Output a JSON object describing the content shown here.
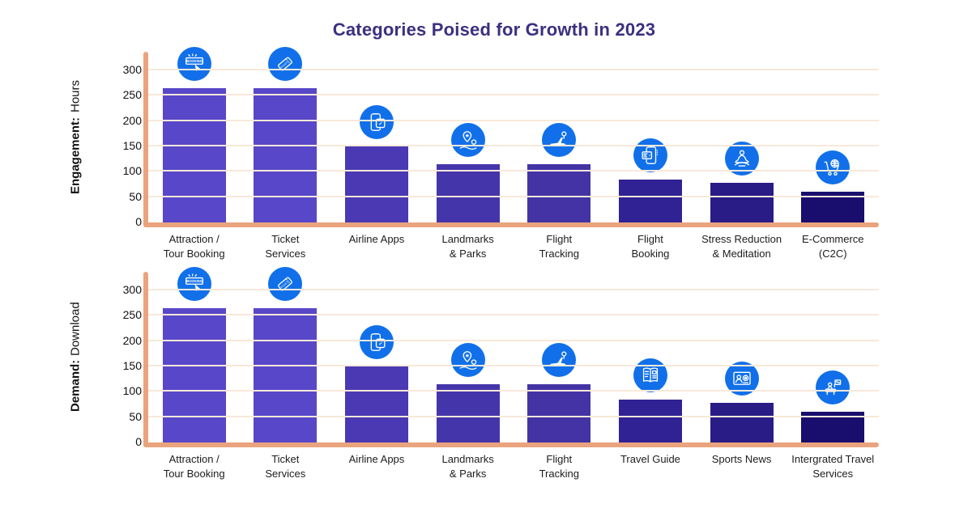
{
  "title": "Categories Poised for Growth in 2023",
  "colors": {
    "title": "#3a3180",
    "axis": "#e9a47e",
    "gridline": "#f8e8da",
    "icon_circle": "#1170e9",
    "bar_palette": [
      "#5847c8",
      "#5847c8",
      "#4a39b2",
      "#4535aa",
      "#4333a5",
      "#302295",
      "#291c87",
      "#190e6e"
    ]
  },
  "icon_texts": {
    "booking": "BOOKING",
    "ticket": "TICKET"
  },
  "chart_data": [
    {
      "type": "bar",
      "title": "Engagement: Hours",
      "axis_label_bold": "Engagement:",
      "axis_label_rest": "Hours",
      "ylim": [
        0,
        300
      ],
      "yticks": [
        0,
        50,
        100,
        150,
        200,
        250,
        300
      ],
      "grid": true,
      "legend": "none",
      "categories": [
        "Attraction /\nTour Booking",
        "Ticket\nServices",
        "Airline Apps",
        "Landmarks\n& Parks",
        "Flight\nTracking",
        "Flight\nBooking",
        "Stress Reduction\n& Meditation",
        "E-Commerce\n(C2C)"
      ],
      "values": [
        265,
        265,
        150,
        115,
        115,
        85,
        78,
        60
      ],
      "icons": [
        "booking-button-icon",
        "ticket-icon",
        "airline-app-icon",
        "landmarks-parks-icon",
        "flight-tracking-icon",
        "flight-booking-icon",
        "meditation-icon",
        "ecommerce-cart-icon"
      ]
    },
    {
      "type": "bar",
      "title": "Demand: Download",
      "axis_label_bold": "Demand:",
      "axis_label_rest": "Download",
      "ylim": [
        0,
        300
      ],
      "yticks": [
        0,
        50,
        100,
        150,
        200,
        250,
        300
      ],
      "grid": true,
      "legend": "none",
      "categories": [
        "Attraction /\nTour Booking",
        "Ticket\nServices",
        "Airline Apps",
        "Landmarks\n& Parks",
        "Flight\nTracking",
        "Travel Guide",
        "Sports News",
        "Intergrated Travel\nServices"
      ],
      "values": [
        265,
        265,
        150,
        115,
        115,
        85,
        78,
        60
      ],
      "icons": [
        "booking-button-icon",
        "ticket-icon",
        "airline-app-icon",
        "landmarks-parks-icon",
        "flight-tracking-icon",
        "travel-guide-icon",
        "sports-news-icon",
        "travel-services-icon"
      ]
    }
  ]
}
